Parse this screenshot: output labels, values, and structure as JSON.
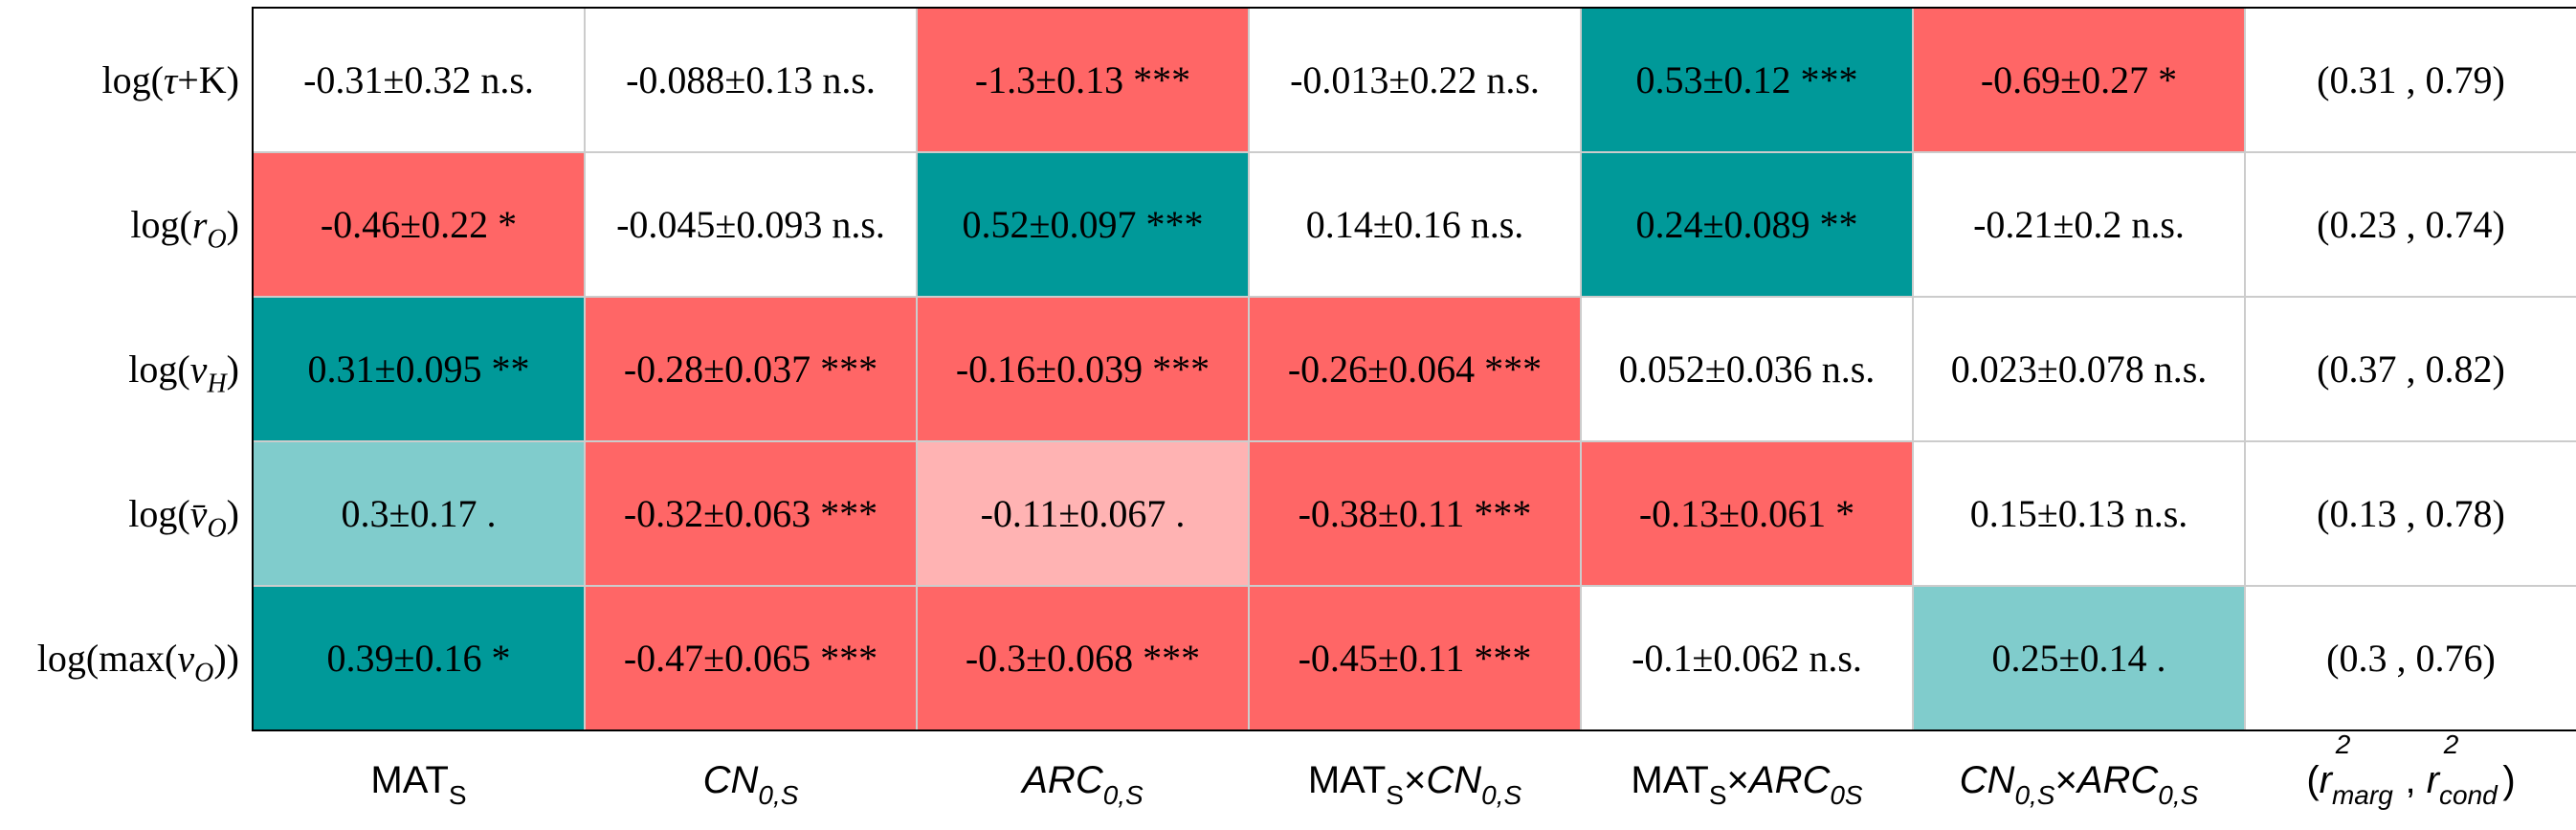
{
  "chart_data": {
    "type": "table",
    "rows": [
      {
        "label": "log(τ+K)",
        "label_html": "log(<tspan font-style='italic'>τ</tspan>+K)"
      },
      {
        "label": "log(r_O)",
        "label_html": "log(<tspan font-style='italic'>r</tspan><tspan font-style='italic' baseline-shift='sub' font-size='70%'>O</tspan>)"
      },
      {
        "label": "log(v_H)",
        "label_html": "log(<tspan font-style='italic'>v</tspan><tspan font-style='italic' baseline-shift='sub' font-size='70%'>H</tspan>)"
      },
      {
        "label": "log(v̄_O)",
        "label_html": "log(<tspan font-style='italic'>v̄</tspan><tspan font-style='italic' baseline-shift='sub' font-size='70%'>O</tspan>)"
      },
      {
        "label": "log(max(v_O))",
        "label_html": "log(max(<tspan font-style='italic'>v</tspan><tspan font-style='italic' baseline-shift='sub' font-size='70%'>O</tspan>))"
      }
    ],
    "columns": [
      {
        "label": "MAT_S",
        "label_html": "MAT<tspan baseline-shift='sub' font-size='70%'>S</tspan>"
      },
      {
        "label": "CN_0,S",
        "label_html": "<tspan font-style='italic'>CN</tspan><tspan font-style='italic' baseline-shift='sub' font-size='70%'>0,S</tspan>"
      },
      {
        "label": "ARC_0,S",
        "label_html": "<tspan font-style='italic'>ARC</tspan><tspan font-style='italic' baseline-shift='sub' font-size='70%'>0,S</tspan>"
      },
      {
        "label": "MAT_S×CN_0,S",
        "label_html": "MAT<tspan baseline-shift='sub' font-size='70%'>S</tspan><tspan baseline-shift='0%' font-size='100%'>×</tspan><tspan font-style='italic'>CN</tspan><tspan font-style='italic' baseline-shift='sub' font-size='70%'>0,S</tspan>"
      },
      {
        "label": "MAT_S×ARC_0S",
        "label_html": "MAT<tspan baseline-shift='sub' font-size='70%'>S</tspan><tspan baseline-shift='0%' font-size='100%'>×</tspan><tspan font-style='italic'>ARC</tspan><tspan font-style='italic' baseline-shift='sub' font-size='70%'>0S</tspan>"
      },
      {
        "label": "CN_0,S×ARC_0,S",
        "label_html": "<tspan font-style='italic'>CN</tspan><tspan font-style='italic' baseline-shift='sub' font-size='70%'>0,S</tspan><tspan baseline-shift='0%' font-size='100%'>×</tspan><tspan font-style='italic'>ARC</tspan><tspan font-style='italic' baseline-shift='sub' font-size='70%'>0,S</tspan>"
      },
      {
        "label": "(r²_marg , r²_cond)",
        "label_html": "(<tspan font-style='italic'>r</tspan><tspan font-style='italic' baseline-shift='sub' font-size='70%'>marg</tspan><tspan font-style='italic' dy='-38' dx='-60' font-size='70%'>2</tspan><tspan dy='38' dx='46'> , </tspan><tspan font-style='italic'>r</tspan><tspan font-style='italic' baseline-shift='sub' font-size='70%'>cond</tspan><tspan font-style='italic' dy='-38' dx='-56' font-size='70%'>2</tspan><tspan dy='38' dx='46'>)</tspan>"
      }
    ],
    "cells": [
      [
        {
          "text": "-0.31±0.32 n.s.",
          "estimate": -0.31,
          "se": 0.32,
          "sig": "n.s."
        },
        {
          "text": "-0.088±0.13 n.s.",
          "estimate": -0.088,
          "se": 0.13,
          "sig": "n.s."
        },
        {
          "text": "-1.3±0.13 ***",
          "estimate": -1.3,
          "se": 0.13,
          "sig": "***"
        },
        {
          "text": "-0.013±0.22 n.s.",
          "estimate": -0.013,
          "se": 0.22,
          "sig": "n.s."
        },
        {
          "text": "0.53±0.12 ***",
          "estimate": 0.53,
          "se": 0.12,
          "sig": "***"
        },
        {
          "text": "-0.69±0.27 *",
          "estimate": -0.69,
          "se": 0.27,
          "sig": "*"
        },
        {
          "text": "(0.31 , 0.79)",
          "r2_marg": 0.31,
          "r2_cond": 0.79
        }
      ],
      [
        {
          "text": "-0.46±0.22 *",
          "estimate": -0.46,
          "se": 0.22,
          "sig": "*"
        },
        {
          "text": "-0.045±0.093 n.s.",
          "estimate": -0.045,
          "se": 0.093,
          "sig": "n.s."
        },
        {
          "text": "0.52±0.097 ***",
          "estimate": 0.52,
          "se": 0.097,
          "sig": "***"
        },
        {
          "text": "0.14±0.16 n.s.",
          "estimate": 0.14,
          "se": 0.16,
          "sig": "n.s."
        },
        {
          "text": "0.24±0.089 **",
          "estimate": 0.24,
          "se": 0.089,
          "sig": "**"
        },
        {
          "text": "-0.21±0.2 n.s.",
          "estimate": -0.21,
          "se": 0.2,
          "sig": "n.s."
        },
        {
          "text": "(0.23 , 0.74)",
          "r2_marg": 0.23,
          "r2_cond": 0.74
        }
      ],
      [
        {
          "text": "0.31±0.095 **",
          "estimate": 0.31,
          "se": 0.095,
          "sig": "**"
        },
        {
          "text": "-0.28±0.037 ***",
          "estimate": -0.28,
          "se": 0.037,
          "sig": "***"
        },
        {
          "text": "-0.16±0.039 ***",
          "estimate": -0.16,
          "se": 0.039,
          "sig": "***"
        },
        {
          "text": "-0.26±0.064 ***",
          "estimate": -0.26,
          "se": 0.064,
          "sig": "***"
        },
        {
          "text": "0.052±0.036 n.s.",
          "estimate": 0.052,
          "se": 0.036,
          "sig": "n.s."
        },
        {
          "text": "0.023±0.078 n.s.",
          "estimate": 0.023,
          "se": 0.078,
          "sig": "n.s."
        },
        {
          "text": "(0.37 , 0.82)",
          "r2_marg": 0.37,
          "r2_cond": 0.82
        }
      ],
      [
        {
          "text": "0.3±0.17 .",
          "estimate": 0.3,
          "se": 0.17,
          "sig": "."
        },
        {
          "text": "-0.32±0.063 ***",
          "estimate": -0.32,
          "se": 0.063,
          "sig": "***"
        },
        {
          "text": "-0.11±0.067 .",
          "estimate": -0.11,
          "se": 0.067,
          "sig": "."
        },
        {
          "text": "-0.38±0.11 ***",
          "estimate": -0.38,
          "se": 0.11,
          "sig": "***"
        },
        {
          "text": "-0.13±0.061 *",
          "estimate": -0.13,
          "se": 0.061,
          "sig": "*"
        },
        {
          "text": "0.15±0.13 n.s.",
          "estimate": 0.15,
          "se": 0.13,
          "sig": "n.s."
        },
        {
          "text": "(0.13 , 0.78)",
          "r2_marg": 0.13,
          "r2_cond": 0.78
        }
      ],
      [
        {
          "text": "0.39±0.16 *",
          "estimate": 0.39,
          "se": 0.16,
          "sig": "*"
        },
        {
          "text": "-0.47±0.065 ***",
          "estimate": -0.47,
          "se": 0.065,
          "sig": "***"
        },
        {
          "text": "-0.3±0.068 ***",
          "estimate": -0.3,
          "se": 0.068,
          "sig": "***"
        },
        {
          "text": "-0.45±0.11 ***",
          "estimate": -0.45,
          "se": 0.11,
          "sig": "***"
        },
        {
          "text": "-0.1±0.062 n.s.",
          "estimate": -0.1,
          "se": 0.062,
          "sig": "n.s."
        },
        {
          "text": "0.25±0.14 .",
          "estimate": 0.25,
          "se": 0.14,
          "sig": "."
        },
        {
          "text": "(0.3 , 0.76)",
          "r2_marg": 0.3,
          "r2_cond": 0.76
        }
      ]
    ],
    "colors": {
      "positive_significant": "#009999",
      "positive_marginal": "#80cccc",
      "negative_significant": "#ff6666",
      "negative_marginal": "#ffb3b3",
      "not_significant": "#ffffff",
      "grid": "#cccccc",
      "border": "#000000"
    },
    "coloring_rule": "cell color by sign of estimate and significance code; n.s. cells and r² column white"
  }
}
